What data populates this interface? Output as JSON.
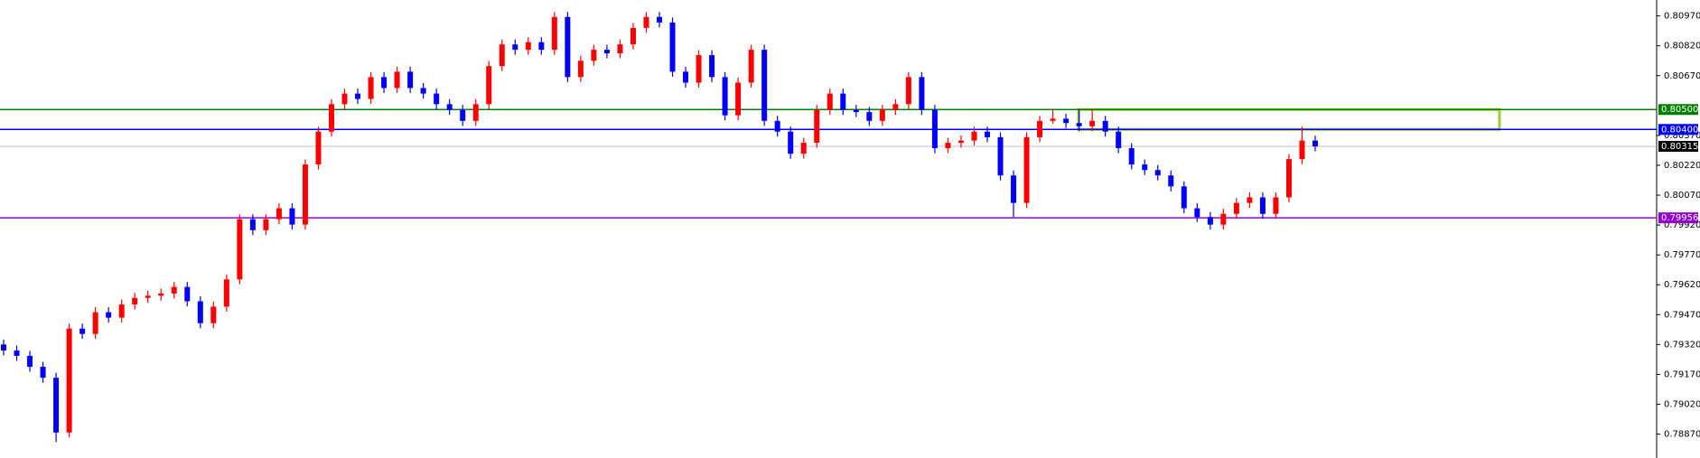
{
  "chart_data": {
    "type": "candlestick",
    "ylim": [
      0.7875,
      0.8105
    ],
    "yticks": [
      {
        "value": 0.8097,
        "label": "0.80970"
      },
      {
        "value": 0.8082,
        "label": "0.80820"
      },
      {
        "value": 0.8067,
        "label": "0.80670"
      },
      {
        "value": 0.8037,
        "label": "0.80370"
      },
      {
        "value": 0.8022,
        "label": "0.80220"
      },
      {
        "value": 0.8007,
        "label": "0.80070"
      },
      {
        "value": 0.7992,
        "label": "0.79920"
      },
      {
        "value": 0.7977,
        "label": "0.79770"
      },
      {
        "value": 0.7962,
        "label": "0.79620"
      },
      {
        "value": 0.7947,
        "label": "0.79470"
      },
      {
        "value": 0.7932,
        "label": "0.79320"
      },
      {
        "value": 0.7917,
        "label": "0.79170"
      },
      {
        "value": 0.7902,
        "label": "0.79020"
      },
      {
        "value": 0.7887,
        "label": "0.78870"
      }
    ],
    "up_color": "#ff0000",
    "down_color": "#0000ff",
    "levels": [
      {
        "value": 0.805,
        "label": "0.80500",
        "color": "#008000"
      },
      {
        "value": 0.804,
        "label": "0.80400",
        "color": "#0000ff"
      },
      {
        "value": 0.80315,
        "label": "0.80315",
        "color": "#c0c0c0"
      },
      {
        "value": 0.79956,
        "label": "0.79956",
        "color": "#9400d3"
      }
    ],
    "candles": [
      [
        0.7932,
        0.79345,
        0.79265,
        0.7929
      ],
      [
        0.7929,
        0.79315,
        0.79238,
        0.79263
      ],
      [
        0.79263,
        0.79288,
        0.79183,
        0.79208
      ],
      [
        0.79208,
        0.79233,
        0.79128,
        0.79153
      ],
      [
        0.79153,
        0.79178,
        0.7883,
        0.78878
      ],
      [
        0.78878,
        0.79425,
        0.78853,
        0.794
      ],
      [
        0.794,
        0.79425,
        0.79348,
        0.79373
      ],
      [
        0.79373,
        0.79507,
        0.79348,
        0.79482
      ],
      [
        0.79482,
        0.79507,
        0.7943,
        0.79455
      ],
      [
        0.79455,
        0.79546,
        0.7943,
        0.79521
      ],
      [
        0.79521,
        0.79579,
        0.79496,
        0.79554
      ],
      [
        0.79554,
        0.7959,
        0.79529,
        0.79565
      ],
      [
        0.79565,
        0.79601,
        0.7954,
        0.79576
      ],
      [
        0.79576,
        0.79634,
        0.79551,
        0.79609
      ],
      [
        0.79609,
        0.79634,
        0.79512,
        0.79537
      ],
      [
        0.79537,
        0.79562,
        0.79402,
        0.79427
      ],
      [
        0.79427,
        0.79535,
        0.79402,
        0.7951
      ],
      [
        0.7951,
        0.79672,
        0.79485,
        0.79647
      ],
      [
        0.79647,
        0.79974,
        0.79622,
        0.79949
      ],
      [
        0.79949,
        0.79974,
        0.79869,
        0.79894
      ],
      [
        0.79894,
        0.79974,
        0.79869,
        0.79949
      ],
      [
        0.79949,
        0.80029,
        0.79924,
        0.80004
      ],
      [
        0.80004,
        0.80029,
        0.79897,
        0.79922
      ],
      [
        0.79922,
        0.80249,
        0.79897,
        0.80224
      ],
      [
        0.80224,
        0.80414,
        0.80199,
        0.80389
      ],
      [
        0.80389,
        0.80552,
        0.80364,
        0.80527
      ],
      [
        0.80527,
        0.80605,
        0.80502,
        0.8058
      ],
      [
        0.8058,
        0.80605,
        0.80528,
        0.80553
      ],
      [
        0.80553,
        0.80688,
        0.80528,
        0.80663
      ],
      [
        0.80663,
        0.80688,
        0.80583,
        0.80608
      ],
      [
        0.80608,
        0.80715,
        0.80583,
        0.8069
      ],
      [
        0.8069,
        0.80715,
        0.80583,
        0.80608
      ],
      [
        0.80608,
        0.80633,
        0.80555,
        0.8058
      ],
      [
        0.8058,
        0.80605,
        0.80502,
        0.80527
      ],
      [
        0.80527,
        0.80552,
        0.80473,
        0.80498
      ],
      [
        0.80498,
        0.80523,
        0.80418,
        0.80443
      ],
      [
        0.80443,
        0.80552,
        0.80418,
        0.80527
      ],
      [
        0.80527,
        0.80743,
        0.80502,
        0.80718
      ],
      [
        0.80718,
        0.80852,
        0.80693,
        0.80827
      ],
      [
        0.80827,
        0.80852,
        0.80775,
        0.808
      ],
      [
        0.808,
        0.80863,
        0.80775,
        0.80838
      ],
      [
        0.80838,
        0.80863,
        0.80775,
        0.808
      ],
      [
        0.808,
        0.8099,
        0.80775,
        0.80965
      ],
      [
        0.80965,
        0.8099,
        0.80638,
        0.80663
      ],
      [
        0.80663,
        0.8077,
        0.80638,
        0.80745
      ],
      [
        0.80745,
        0.80825,
        0.8072,
        0.808
      ],
      [
        0.808,
        0.80825,
        0.80757,
        0.80782
      ],
      [
        0.80782,
        0.80852,
        0.80757,
        0.80827
      ],
      [
        0.80827,
        0.80935,
        0.80802,
        0.8091
      ],
      [
        0.8091,
        0.8099,
        0.80885,
        0.80965
      ],
      [
        0.80965,
        0.8099,
        0.80912,
        0.80937
      ],
      [
        0.80937,
        0.80962,
        0.80665,
        0.8069
      ],
      [
        0.8069,
        0.80715,
        0.8061,
        0.80635
      ],
      [
        0.80635,
        0.80798,
        0.8061,
        0.80773
      ],
      [
        0.80773,
        0.80798,
        0.80638,
        0.80663
      ],
      [
        0.80663,
        0.80688,
        0.80446,
        0.80471
      ],
      [
        0.80471,
        0.8066,
        0.80446,
        0.80635
      ],
      [
        0.80635,
        0.80825,
        0.8061,
        0.808
      ],
      [
        0.808,
        0.80825,
        0.80418,
        0.80443
      ],
      [
        0.80443,
        0.80468,
        0.80364,
        0.80389
      ],
      [
        0.80389,
        0.80414,
        0.80253,
        0.80278
      ],
      [
        0.80278,
        0.80358,
        0.80253,
        0.80333
      ],
      [
        0.80333,
        0.80523,
        0.80308,
        0.80498
      ],
      [
        0.80498,
        0.80605,
        0.80473,
        0.8058
      ],
      [
        0.8058,
        0.80605,
        0.80473,
        0.80498
      ],
      [
        0.80498,
        0.80523,
        0.80462,
        0.80487
      ],
      [
        0.80487,
        0.80512,
        0.80418,
        0.80443
      ],
      [
        0.80443,
        0.80523,
        0.80418,
        0.80498
      ],
      [
        0.80498,
        0.80552,
        0.80473,
        0.80527
      ],
      [
        0.80527,
        0.80688,
        0.80502,
        0.80663
      ],
      [
        0.80663,
        0.80688,
        0.80473,
        0.80498
      ],
      [
        0.80498,
        0.80523,
        0.80281,
        0.80306
      ],
      [
        0.80306,
        0.80358,
        0.80281,
        0.80333
      ],
      [
        0.80333,
        0.80369,
        0.80308,
        0.80344
      ],
      [
        0.80344,
        0.80414,
        0.80319,
        0.80389
      ],
      [
        0.80389,
        0.80414,
        0.80336,
        0.80361
      ],
      [
        0.80361,
        0.80386,
        0.80144,
        0.80169
      ],
      [
        0.80169,
        0.80194,
        0.7996,
        0.80031
      ],
      [
        0.80031,
        0.80386,
        0.80006,
        0.80361
      ],
      [
        0.80361,
        0.80468,
        0.80336,
        0.80443
      ],
      [
        0.80443,
        0.805,
        0.80429,
        0.80454
      ],
      [
        0.80454,
        0.80479,
        0.80407,
        0.80432
      ],
      [
        0.80432,
        0.805,
        0.80391,
        0.80416
      ],
      [
        0.80416,
        0.805,
        0.80391,
        0.80443
      ],
      [
        0.80443,
        0.80468,
        0.80364,
        0.80389
      ],
      [
        0.80389,
        0.80414,
        0.80281,
        0.80306
      ],
      [
        0.80306,
        0.80331,
        0.80199,
        0.80224
      ],
      [
        0.80224,
        0.80249,
        0.80171,
        0.80196
      ],
      [
        0.80196,
        0.80221,
        0.80144,
        0.80169
      ],
      [
        0.80169,
        0.80194,
        0.80089,
        0.80114
      ],
      [
        0.80114,
        0.80139,
        0.79979,
        0.80004
      ],
      [
        0.80004,
        0.80029,
        0.79935,
        0.7996
      ],
      [
        0.7996,
        0.79985,
        0.79897,
        0.79922
      ],
      [
        0.79922,
        0.80001,
        0.79897,
        0.79976
      ],
      [
        0.79976,
        0.80056,
        0.79951,
        0.80031
      ],
      [
        0.80031,
        0.80084,
        0.80006,
        0.80059
      ],
      [
        0.80059,
        0.80084,
        0.79951,
        0.79976
      ],
      [
        0.79976,
        0.80084,
        0.79951,
        0.80059
      ],
      [
        0.80059,
        0.80276,
        0.80034,
        0.80251
      ],
      [
        0.80251,
        0.80414,
        0.80226,
        0.80344
      ],
      [
        0.80344,
        0.80369,
        0.8029,
        0.80315
      ]
    ]
  }
}
